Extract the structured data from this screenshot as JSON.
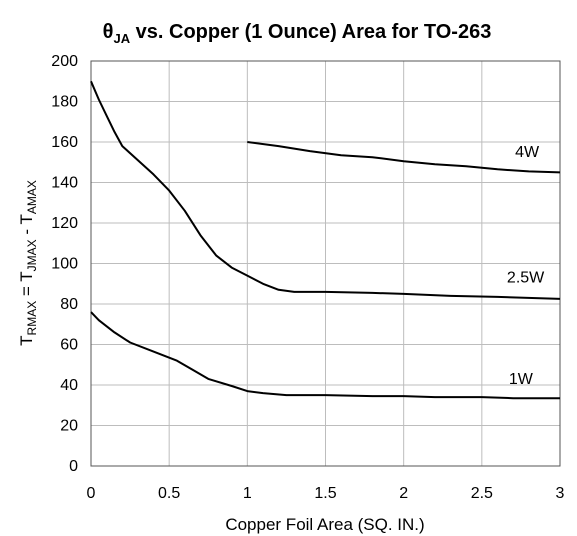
{
  "chart_data": {
    "type": "line",
    "title_main": "θ",
    "title_sub": "JA",
    "title_rest": " vs. Copper (1 Ounce) Area for TO-263",
    "xlabel": "Copper Foil Area (SQ. IN.)",
    "ylabel_parts": [
      {
        "t": "T",
        "sub": false
      },
      {
        "t": "RMAX",
        "sub": true
      },
      {
        "t": " = T",
        "sub": false
      },
      {
        "t": "JMAX",
        "sub": true
      },
      {
        "t": " - T",
        "sub": false
      },
      {
        "t": "AMAX",
        "sub": true
      }
    ],
    "xlim": [
      0,
      3
    ],
    "ylim": [
      0,
      200
    ],
    "xticks": [
      0,
      0.5,
      1,
      1.5,
      2,
      2.5,
      3
    ],
    "xtick_labels": [
      "0",
      "0.5",
      "1",
      "1.5",
      "2",
      "2.5",
      "3"
    ],
    "yticks": [
      0,
      20,
      40,
      60,
      80,
      100,
      120,
      140,
      160,
      180,
      200
    ],
    "ytick_labels": [
      "0",
      "20",
      "40",
      "60",
      "80",
      "100",
      "120",
      "140",
      "160",
      "180",
      "200"
    ],
    "grid": true,
    "series": [
      {
        "name": "4W",
        "points": [
          [
            1.0,
            160
          ],
          [
            1.2,
            158
          ],
          [
            1.4,
            155.5
          ],
          [
            1.6,
            153.5
          ],
          [
            1.8,
            152.5
          ],
          [
            2.0,
            150.5
          ],
          [
            2.2,
            149
          ],
          [
            2.4,
            148
          ],
          [
            2.6,
            146.5
          ],
          [
            2.8,
            145.5
          ],
          [
            3.0,
            145
          ]
        ]
      },
      {
        "name": "2.5W",
        "points": [
          [
            0.0,
            190
          ],
          [
            0.05,
            181
          ],
          [
            0.1,
            173
          ],
          [
            0.15,
            165
          ],
          [
            0.2,
            158
          ],
          [
            0.3,
            151
          ],
          [
            0.4,
            144
          ],
          [
            0.5,
            136
          ],
          [
            0.6,
            126
          ],
          [
            0.7,
            114
          ],
          [
            0.8,
            104
          ],
          [
            0.9,
            98
          ],
          [
            1.0,
            94
          ],
          [
            1.1,
            90
          ],
          [
            1.2,
            87
          ],
          [
            1.3,
            86
          ],
          [
            1.5,
            86
          ],
          [
            1.8,
            85.5
          ],
          [
            2.0,
            85
          ],
          [
            2.3,
            84
          ],
          [
            2.6,
            83.5
          ],
          [
            3.0,
            82.5
          ]
        ]
      },
      {
        "name": "1W",
        "points": [
          [
            0.0,
            76
          ],
          [
            0.05,
            72
          ],
          [
            0.15,
            66
          ],
          [
            0.25,
            61
          ],
          [
            0.4,
            56.5
          ],
          [
            0.55,
            52
          ],
          [
            0.65,
            47.5
          ],
          [
            0.75,
            43
          ],
          [
            0.9,
            39.5
          ],
          [
            1.0,
            37
          ],
          [
            1.1,
            36
          ],
          [
            1.25,
            35
          ],
          [
            1.5,
            35
          ],
          [
            1.8,
            34.5
          ],
          [
            2.0,
            34.5
          ],
          [
            2.2,
            34
          ],
          [
            2.5,
            34
          ],
          [
            2.7,
            33.5
          ],
          [
            3.0,
            33.5
          ]
        ]
      }
    ]
  }
}
